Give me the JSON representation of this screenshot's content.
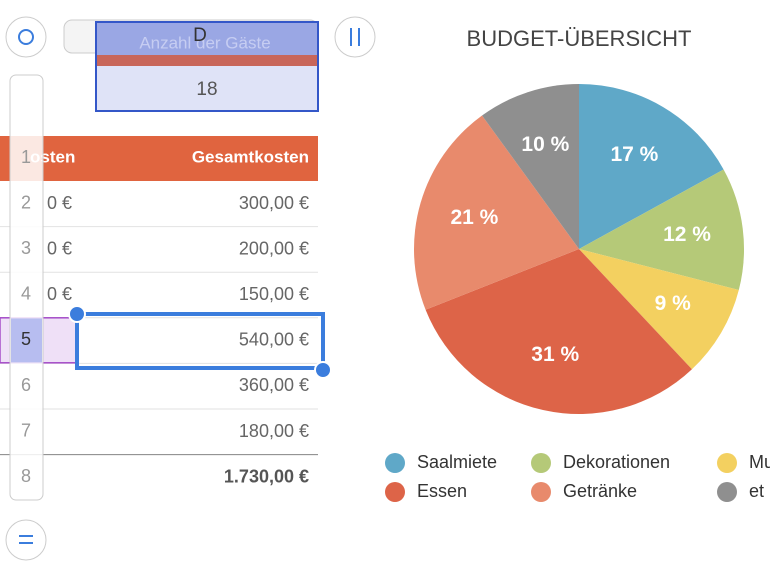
{
  "toolbar": {
    "column_letter": "D",
    "field_label": "Anzahl der Gäste",
    "field_value": "18"
  },
  "table": {
    "headers": [
      "osten",
      "Gesamtkosten"
    ],
    "row_numbers": [
      1,
      2,
      3,
      4,
      5,
      6,
      7,
      8
    ],
    "left_cells": [
      "0 €",
      "0 €",
      "0 €"
    ],
    "totals_column": [
      "300,00 €",
      "200,00 €",
      "150,00 €",
      "540,00 €",
      "360,00 €",
      "180,00 €"
    ],
    "grand_total": "1.730,00 €"
  },
  "chart_data": {
    "type": "pie",
    "title": "BUDGET-ÜBERSICHT",
    "categories": [
      "Saalmiete",
      "Dekorationen",
      "Mu",
      "Essen",
      "Getränke",
      "et"
    ],
    "values": [
      17,
      12,
      9,
      31,
      21,
      10
    ],
    "value_labels": [
      "17 %",
      "12 %",
      "9 %",
      "31 %",
      "21 %",
      "10 %"
    ],
    "colors": [
      "#5fa8c8",
      "#b5c978",
      "#f3d060",
      "#dd6448",
      "#e88a6c",
      "#8f8f8f"
    ]
  }
}
